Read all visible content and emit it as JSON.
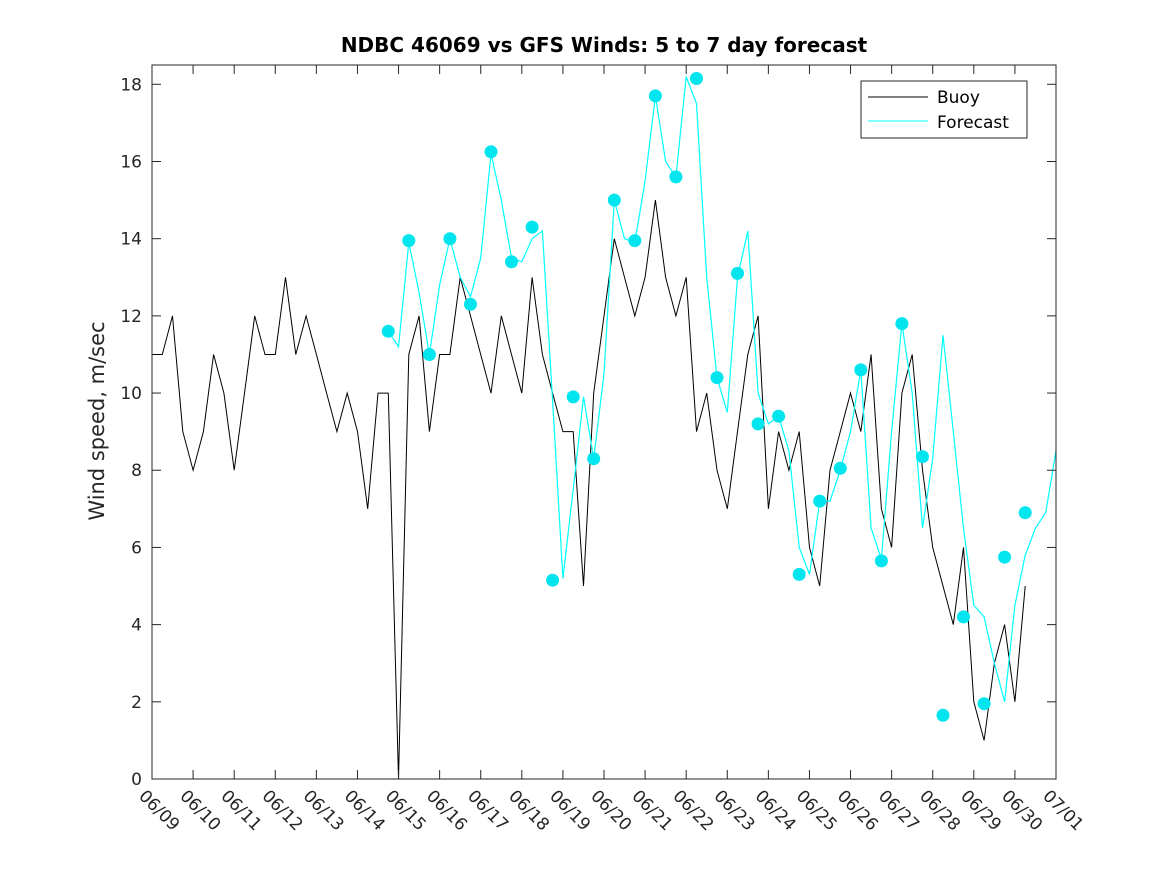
{
  "chart_data": {
    "type": "line",
    "title": "NDBC 46069 vs GFS Winds: 5 to 7 day forecast",
    "ylabel": "Wind speed, m/sec",
    "xlabel": "",
    "x_tick_labels": [
      "06/09",
      "06/10",
      "06/11",
      "06/12",
      "06/13",
      "06/14",
      "06/15",
      "06/16",
      "06/17",
      "06/18",
      "06/19",
      "06/20",
      "06/21",
      "06/22",
      "06/23",
      "06/24",
      "06/25",
      "06/26",
      "06/27",
      "06/28",
      "06/29",
      "06/30",
      "07/01"
    ],
    "y_tick_labels": [
      "0",
      "2",
      "4",
      "6",
      "8",
      "10",
      "12",
      "14",
      "16",
      "18"
    ],
    "ylim": [
      0,
      18.5
    ],
    "xlim": [
      "06/09 00:00",
      "07/01 00:00"
    ],
    "legend_position": "top-right",
    "grid": false,
    "colors": {
      "buoy": "#000000",
      "forecast": "#00ffff",
      "markers": "#00e5ee",
      "axes": "#262626"
    },
    "series": [
      {
        "name": "Buoy",
        "x": [
          "06/09 00:00",
          "06/09 06:00",
          "06/09 12:00",
          "06/09 18:00",
          "06/10 00:00",
          "06/10 06:00",
          "06/10 12:00",
          "06/10 18:00",
          "06/11 00:00",
          "06/11 06:00",
          "06/11 12:00",
          "06/11 18:00",
          "06/12 00:00",
          "06/12 06:00",
          "06/12 12:00",
          "06/12 18:00",
          "06/13 00:00",
          "06/13 06:00",
          "06/13 12:00",
          "06/13 18:00",
          "06/14 00:00",
          "06/14 06:00",
          "06/14 12:00",
          "06/14 18:00",
          "06/15 00:00",
          "06/15 06:00",
          "06/15 12:00",
          "06/15 18:00",
          "06/16 00:00",
          "06/16 06:00",
          "06/16 12:00",
          "06/16 18:00",
          "06/17 00:00",
          "06/17 06:00",
          "06/17 12:00",
          "06/17 18:00",
          "06/18 00:00",
          "06/18 06:00",
          "06/18 12:00",
          "06/18 18:00",
          "06/19 00:00",
          "06/19 06:00",
          "06/19 12:00",
          "06/19 18:00",
          "06/20 00:00",
          "06/20 06:00",
          "06/20 12:00",
          "06/20 18:00",
          "06/21 00:00",
          "06/21 06:00",
          "06/21 12:00",
          "06/21 18:00",
          "06/22 00:00",
          "06/22 06:00",
          "06/22 12:00",
          "06/22 18:00",
          "06/23 00:00",
          "06/23 06:00",
          "06/23 12:00",
          "06/23 18:00",
          "06/24 00:00",
          "06/24 06:00",
          "06/24 12:00",
          "06/24 18:00",
          "06/25 00:00",
          "06/25 06:00",
          "06/25 12:00",
          "06/25 18:00",
          "06/26 00:00",
          "06/26 06:00",
          "06/26 12:00",
          "06/26 18:00",
          "06/27 00:00",
          "06/27 06:00",
          "06/27 12:00",
          "06/27 18:00",
          "06/28 00:00",
          "06/28 06:00",
          "06/28 12:00",
          "06/28 18:00",
          "06/29 00:00",
          "06/29 06:00",
          "06/29 12:00",
          "06/29 18:00",
          "06/30 00:00",
          "06/30 06:00"
        ],
        "values": [
          11,
          11,
          12,
          9,
          8,
          9,
          11,
          10,
          8,
          10,
          12,
          11,
          11,
          13,
          11,
          12,
          11,
          10,
          9,
          10,
          9,
          7,
          10,
          10,
          0,
          11,
          12,
          9,
          11,
          11,
          13,
          12,
          11,
          10,
          12,
          11,
          10,
          13,
          11,
          10,
          9,
          9,
          5,
          10,
          12,
          14,
          13,
          12,
          13,
          15,
          13,
          12,
          13,
          9,
          10,
          8,
          7,
          9,
          11,
          12,
          7,
          9,
          8,
          9,
          6,
          5,
          8,
          9,
          10,
          9,
          11,
          7,
          6,
          10,
          11,
          8,
          6,
          5,
          4,
          6,
          2,
          1,
          3,
          4,
          2,
          5
        ]
      },
      {
        "name": "Forecast",
        "x": [
          "06/14 18:00",
          "06/15 00:00",
          "06/15 06:00",
          "06/15 12:00",
          "06/15 18:00",
          "06/16 00:00",
          "06/16 06:00",
          "06/16 12:00",
          "06/16 18:00",
          "06/17 00:00",
          "06/17 06:00",
          "06/17 12:00",
          "06/17 18:00",
          "06/18 00:00",
          "06/18 06:00",
          "06/18 12:00",
          "06/18 18:00",
          "06/19 00:00",
          "06/19 06:00",
          "06/19 12:00",
          "06/19 18:00",
          "06/20 00:00",
          "06/20 06:00",
          "06/20 12:00",
          "06/20 18:00",
          "06/21 00:00",
          "06/21 06:00",
          "06/21 12:00",
          "06/21 18:00",
          "06/22 00:00",
          "06/22 06:00",
          "06/22 12:00",
          "06/22 18:00",
          "06/23 00:00",
          "06/23 06:00",
          "06/23 12:00",
          "06/23 18:00",
          "06/24 00:00",
          "06/24 06:00",
          "06/24 12:00",
          "06/24 18:00",
          "06/25 00:00",
          "06/25 06:00",
          "06/25 12:00",
          "06/25 18:00",
          "06/26 00:00",
          "06/26 06:00",
          "06/26 12:00",
          "06/26 18:00",
          "06/27 00:00",
          "06/27 06:00",
          "06/27 12:00",
          "06/27 18:00",
          "06/28 00:00",
          "06/28 06:00",
          "06/28 12:00",
          "06/28 18:00",
          "06/29 00:00",
          "06/29 06:00",
          "06/29 12:00",
          "06/29 18:00",
          "06/30 00:00",
          "06/30 06:00",
          "06/30 12:00",
          "06/30 18:00",
          "07/01 00:00"
        ],
        "values": [
          11.6,
          11.2,
          13.9,
          12.6,
          11.0,
          12.8,
          14.0,
          13.0,
          12.5,
          13.5,
          16.2,
          15.0,
          13.5,
          13.4,
          14.0,
          14.2,
          9.8,
          5.2,
          7.5,
          9.9,
          8.3,
          10.5,
          15.0,
          14.0,
          13.9,
          15.5,
          17.7,
          16.0,
          15.6,
          18.2,
          17.5,
          13.0,
          10.4,
          9.5,
          13.0,
          14.2,
          10.0,
          9.2,
          9.4,
          8.5,
          6.0,
          5.3,
          7.2,
          7.2,
          8.0,
          9.0,
          10.6,
          6.5,
          5.7,
          9.0,
          11.8,
          10.0,
          6.5,
          8.3,
          11.5,
          9.0,
          6.5,
          4.5,
          4.2,
          3.0,
          2.0,
          4.5,
          5.8,
          6.5,
          6.9,
          8.5
        ]
      }
    ],
    "markers": [
      {
        "x": "06/14 18:00",
        "y": 11.6
      },
      {
        "x": "06/15 06:00",
        "y": 13.95
      },
      {
        "x": "06/15 18:00",
        "y": 11.0
      },
      {
        "x": "06/16 06:00",
        "y": 14.0
      },
      {
        "x": "06/16 18:00",
        "y": 12.3
      },
      {
        "x": "06/17 06:00",
        "y": 16.25
      },
      {
        "x": "06/17 18:00",
        "y": 13.4
      },
      {
        "x": "06/18 06:00",
        "y": 14.3
      },
      {
        "x": "06/18 18:00",
        "y": 5.15
      },
      {
        "x": "06/19 06:00",
        "y": 9.9
      },
      {
        "x": "06/19 18:00",
        "y": 8.3
      },
      {
        "x": "06/20 06:00",
        "y": 15.0
      },
      {
        "x": "06/20 18:00",
        "y": 13.95
      },
      {
        "x": "06/21 06:00",
        "y": 17.7
      },
      {
        "x": "06/21 18:00",
        "y": 15.6
      },
      {
        "x": "06/22 06:00",
        "y": 18.15
      },
      {
        "x": "06/22 18:00",
        "y": 10.4
      },
      {
        "x": "06/23 06:00",
        "y": 13.1
      },
      {
        "x": "06/23 18:00",
        "y": 9.2
      },
      {
        "x": "06/24 06:00",
        "y": 9.4
      },
      {
        "x": "06/24 18:00",
        "y": 5.3
      },
      {
        "x": "06/25 06:00",
        "y": 7.2
      },
      {
        "x": "06/25 18:00",
        "y": 8.05
      },
      {
        "x": "06/26 06:00",
        "y": 10.6
      },
      {
        "x": "06/26 18:00",
        "y": 5.65
      },
      {
        "x": "06/27 06:00",
        "y": 11.8
      },
      {
        "x": "06/27 18:00",
        "y": 8.35
      },
      {
        "x": "06/28 06:00",
        "y": 1.65
      },
      {
        "x": "06/28 18:00",
        "y": 4.2
      },
      {
        "x": "06/29 06:00",
        "y": 1.95
      },
      {
        "x": "06/29 18:00",
        "y": 5.75
      },
      {
        "x": "06/30 06:00",
        "y": 6.9
      }
    ]
  }
}
